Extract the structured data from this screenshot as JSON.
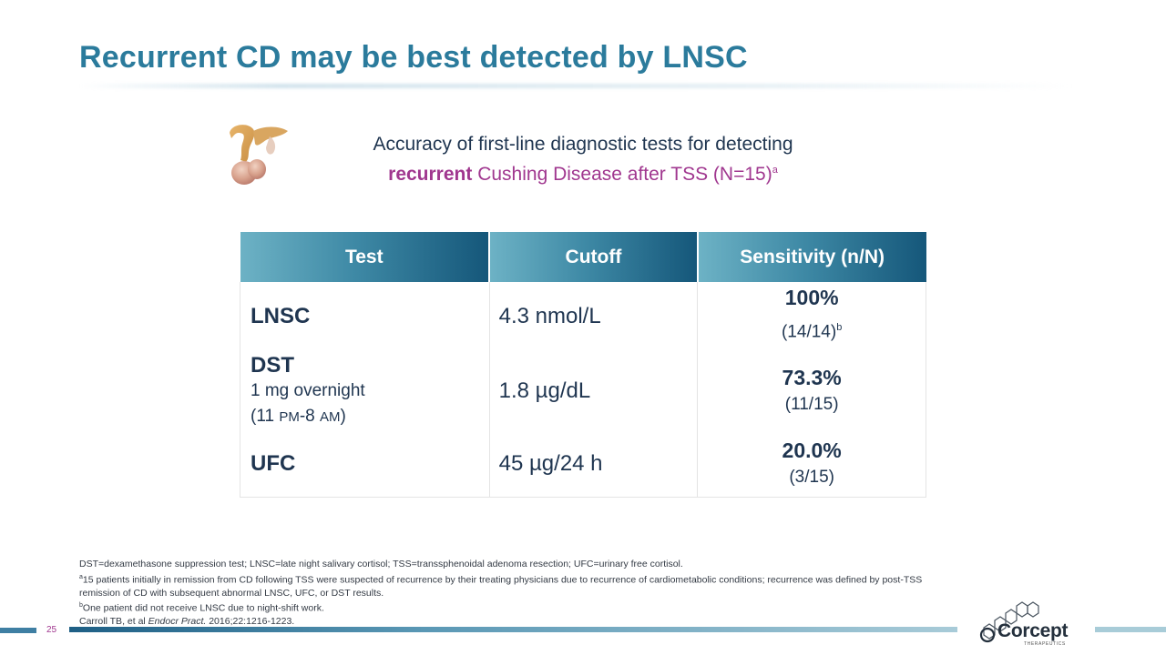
{
  "slide": {
    "title": "Recurrent CD may be best detected by LNSC",
    "page_number": "25"
  },
  "subtitle": {
    "line1": "Accuracy of first-line diagnostic tests for detecting",
    "line2_emph": "recurrent",
    "line2_rest": " Cushing Disease after TSS (N=15)",
    "line2_sup": "a"
  },
  "table": {
    "headers": [
      "Test",
      "Cutoff",
      "Sensitivity (n/N)"
    ],
    "rows": [
      {
        "test": "LNSC",
        "detail1": "",
        "detail2": "",
        "cutoff": "4.3 nmol/L",
        "pct": "100%",
        "frac": "(14/14)",
        "frac_sup": "b"
      },
      {
        "test": "DST",
        "detail1": "1 mg overnight",
        "detail2_a": "(11 ",
        "detail2_b": "PM",
        "detail2_c": "-8 ",
        "detail2_d": "AM",
        "detail2_e": ")",
        "cutoff": "1.8 µg/dL",
        "pct": "73.3%",
        "frac": "(11/15)",
        "frac_sup": ""
      },
      {
        "test": "UFC",
        "detail1": "",
        "detail2": "",
        "cutoff": "45 µg/24 h",
        "pct": "20.0%",
        "frac": "(3/15)",
        "frac_sup": ""
      }
    ]
  },
  "footnotes": {
    "abbrev": "DST=dexamethasone suppression test; LNSC=late night salivary cortisol; TSS=transsphenoidal adenoma resection; UFC=urinary free cortisol.",
    "a_sup": "a",
    "a_text": "15 patients initially in remission from CD following TSS were suspected of recurrence by their treating physicians due to recurrence of cardiometabolic conditions; recurrence was defined by post-TSS remission of CD with subsequent abnormal LNSC, UFC, or DST results.",
    "b_sup": "b",
    "b_text": "One patient did not receive LNSC due to night-shift work.",
    "ref_a": "Carroll TB, et al ",
    "ref_journal": "Endocr Pract.",
    "ref_b": " 2016;22:1216-1223."
  },
  "logo": {
    "name": "Corcept",
    "tagline": "THERAPEUTICS"
  },
  "colors": {
    "title": "#2b7b9c",
    "accent_purple": "#a0378f",
    "header_dark": "#15577a",
    "header_light": "#6db2c5"
  },
  "icons": {
    "illustration": "pituitary-gland-icon",
    "logo_mark": "hexagon-chain-icon"
  }
}
